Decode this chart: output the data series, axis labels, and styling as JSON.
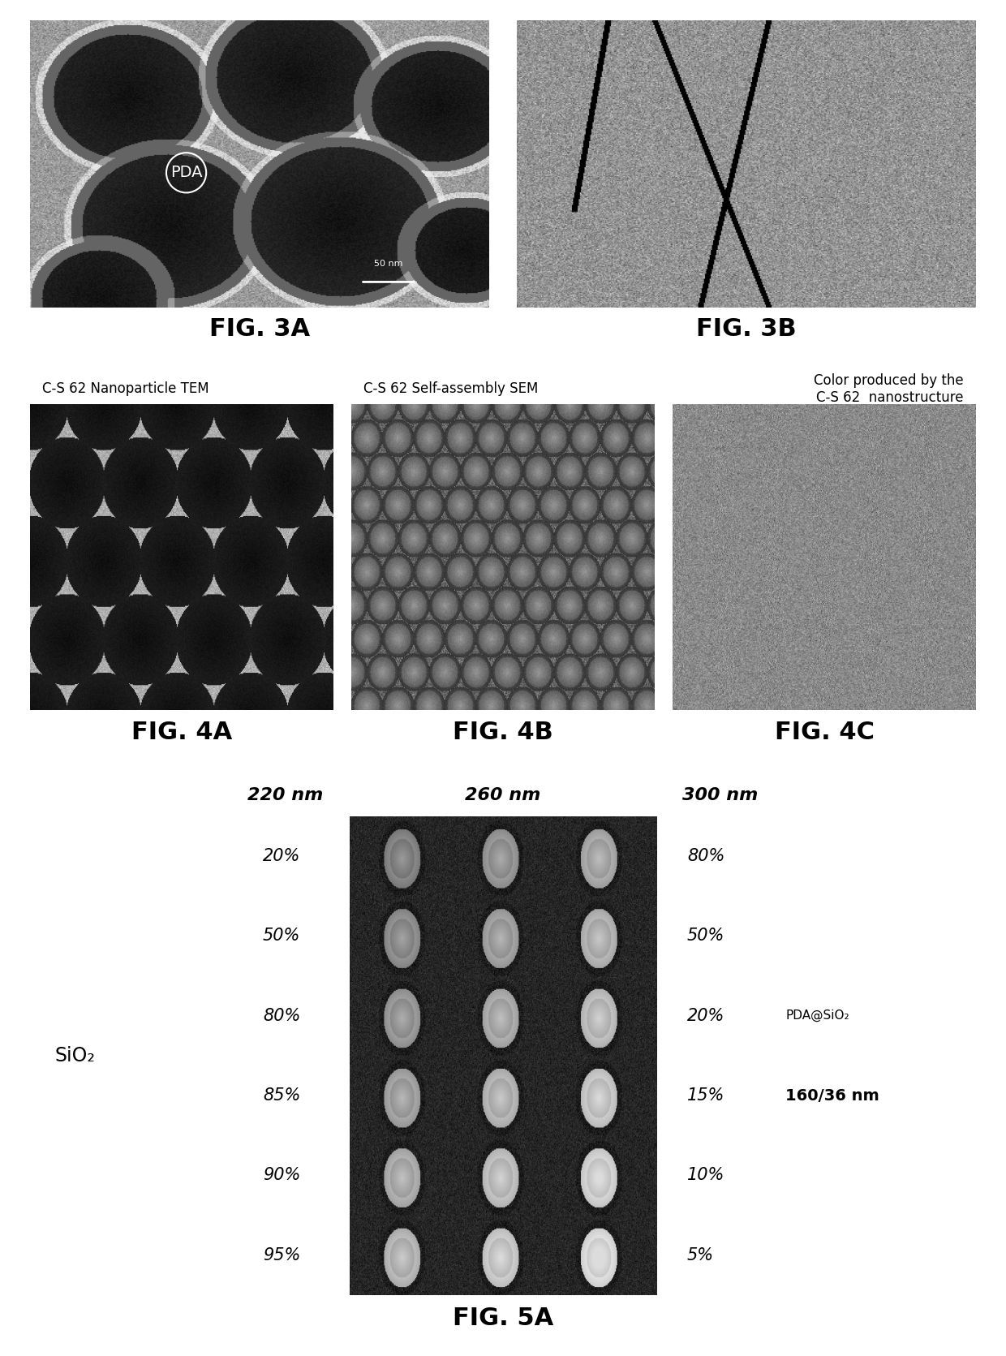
{
  "fig3a_label": "FIG. 3A",
  "fig3b_label": "FIG. 3B",
  "fig4a_label": "FIG. 4A",
  "fig4b_label": "FIG. 4B",
  "fig4c_label": "FIG. 4C",
  "fig5a_label": "FIG. 5A",
  "fig4a_title": "C-S 62 Nanoparticle TEM",
  "fig4b_title": "C-S 62 Self-assembly SEM",
  "fig4c_title": "Color produced by the\nC-S 62  nanostructure",
  "fig3a_text": "PDA",
  "fig3a_scalebar": "50 nm",
  "fig5a_col_labels": [
    "220 nm",
    "260 nm",
    "300 nm"
  ],
  "fig5a_left_labels": [
    "20%",
    "50%",
    "80%",
    "85%",
    "90%",
    "95%"
  ],
  "fig5a_right_labels": [
    "80%",
    "50%",
    "20%",
    "15%",
    "10%",
    "5%"
  ],
  "fig5a_sio2_label": "SiO₂",
  "fig5a_pda_label": "PDA@SiO₂",
  "fig5a_size_label": "160/36 nm",
  "background_color": "#ffffff",
  "label_fontsize": 22,
  "small_title_fontsize": 12,
  "pct_fontsize": 15,
  "col_label_fontsize": 16,
  "sio2_fontsize": 17,
  "pda_fontsize": 11,
  "size_fontsize": 14
}
